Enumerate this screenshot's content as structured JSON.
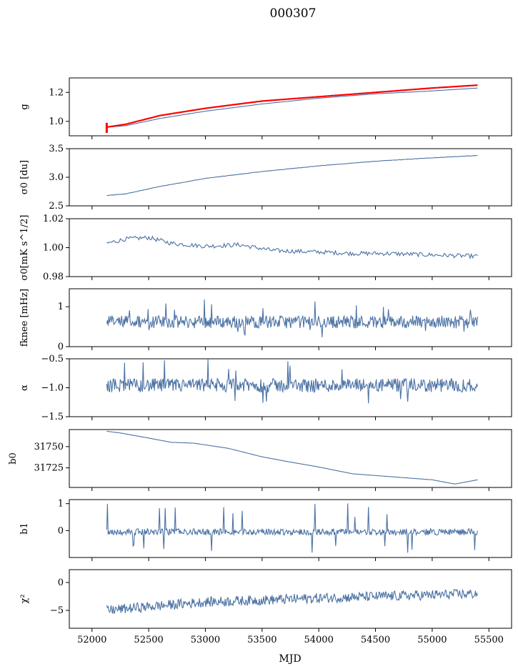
{
  "figure": {
    "title": "000307",
    "xlabel": "MJD"
  },
  "colors": {
    "series": "#4c72a4",
    "highlight": "#ff0000",
    "axis": "#000000"
  },
  "chart_data": [
    {
      "type": "line",
      "ylabel": "g",
      "xlim": [
        51800,
        55700
      ],
      "ylim": [
        0.9,
        1.3
      ],
      "yticks": [
        1.0,
        1.2
      ],
      "ytick_labels": [
        "1.0",
        "1.2"
      ],
      "x_range": [
        52130,
        55400
      ],
      "series": [
        {
          "color": "#4c72a4",
          "x": [
            52130,
            52300,
            52600,
            53000,
            53500,
            54000,
            54500,
            55000,
            55400
          ],
          "values": [
            0.96,
            0.97,
            1.02,
            1.07,
            1.12,
            1.16,
            1.19,
            1.21,
            1.23
          ]
        },
        {
          "color": "#ff0000",
          "x": [
            52130,
            52300,
            52600,
            53000,
            53500,
            54000,
            54500,
            55000,
            55400
          ],
          "values": [
            0.96,
            0.98,
            1.04,
            1.09,
            1.14,
            1.17,
            1.2,
            1.23,
            1.25
          ]
        }
      ]
    },
    {
      "type": "line",
      "ylabel": "σ0 [du]",
      "xlim": [
        51800,
        55700
      ],
      "ylim": [
        2.5,
        3.5
      ],
      "yticks": [
        2.5,
        3.0,
        3.5
      ],
      "ytick_labels": [
        "2.5",
        "3.0",
        "3.5"
      ],
      "x_range": [
        52130,
        55400
      ],
      "series": [
        {
          "color": "#4c72a4",
          "x": [
            52130,
            52300,
            52600,
            53000,
            53500,
            54000,
            54500,
            55000,
            55400
          ],
          "values": [
            2.68,
            2.71,
            2.84,
            2.98,
            3.1,
            3.2,
            3.28,
            3.34,
            3.38
          ]
        }
      ]
    },
    {
      "type": "line",
      "ylabel": "σ0[mK s^1/2]",
      "xlim": [
        51800,
        55700
      ],
      "ylim": [
        0.98,
        1.02
      ],
      "yticks": [
        0.98,
        1.0,
        1.02
      ],
      "ytick_labels": [
        "0.98",
        "1.00",
        "1.02"
      ],
      "x_range": [
        52130,
        55400
      ],
      "series": [
        {
          "color": "#4c72a4",
          "x": [
            52130,
            52300,
            52500,
            52700,
            53000,
            53300,
            53600,
            54000,
            54300,
            54600,
            55000,
            55400
          ],
          "values": [
            1.003,
            1.006,
            1.007,
            1.003,
            1.001,
            1.002,
            0.998,
            0.997,
            0.996,
            0.996,
            0.995,
            0.994
          ]
        }
      ]
    },
    {
      "type": "line",
      "ylabel": "fknee [mHz]",
      "xlim": [
        51800,
        55700
      ],
      "ylim": [
        0,
        1.45
      ],
      "yticks": [
        0,
        1
      ],
      "ytick_labels": [
        "0",
        "1"
      ],
      "x_range": [
        52130,
        55400
      ],
      "noise": {
        "mean": 0.62,
        "amplitude": 0.16,
        "spike_max": 1.2,
        "spike_min": 0.22
      },
      "series": [
        {
          "color": "#4c72a4"
        }
      ]
    },
    {
      "type": "line",
      "ylabel": "α",
      "xlim": [
        51800,
        55700
      ],
      "ylim": [
        -1.5,
        -0.5
      ],
      "yticks": [
        -1.5,
        -1.0,
        -0.5
      ],
      "ytick_labels": [
        "−1.5",
        "−1.0",
        "−0.5"
      ],
      "x_range": [
        52130,
        55400
      ],
      "noise": {
        "mean": -0.96,
        "amplitude": 0.12,
        "spike_max": -0.5,
        "spike_min": -1.33
      },
      "series": [
        {
          "color": "#4c72a4"
        }
      ]
    },
    {
      "type": "line",
      "ylabel": "b0",
      "xlim": [
        51800,
        55700
      ],
      "ylim": [
        31702,
        31770
      ],
      "yticks": [
        31725,
        31750
      ],
      "ytick_labels": [
        "31725",
        "31750"
      ],
      "x_range": [
        52130,
        55400
      ],
      "series": [
        {
          "color": "#4c72a4",
          "x": [
            52130,
            52250,
            52500,
            52700,
            52900,
            53200,
            53500,
            53700,
            54000,
            54300,
            54600,
            55000,
            55200,
            55400
          ],
          "values": [
            31768,
            31766,
            31760,
            31755,
            31754,
            31748,
            31738,
            31733,
            31726,
            31718,
            31715,
            31711,
            31706,
            31711
          ]
        }
      ]
    },
    {
      "type": "line",
      "ylabel": "b1",
      "xlim": [
        51800,
        55700
      ],
      "ylim": [
        -1.0,
        1.15
      ],
      "yticks": [
        0,
        1
      ],
      "ytick_labels": [
        "0",
        "1"
      ],
      "x_range": [
        52130,
        55400
      ],
      "noise": {
        "mean": -0.05,
        "amplitude": 0.12,
        "spike_max": 1.02,
        "spike_min": -0.88
      },
      "series": [
        {
          "color": "#4c72a4"
        }
      ]
    },
    {
      "type": "line",
      "ylabel": "χ²",
      "xlim": [
        51800,
        55700
      ],
      "ylim": [
        -8.2,
        2.3
      ],
      "yticks": [
        -5,
        0
      ],
      "ytick_labels": [
        "−5",
        "0"
      ],
      "x_range": [
        52130,
        55400
      ],
      "trend": {
        "x": [
          52130,
          52400,
          53000,
          54000,
          55400
        ],
        "values": [
          -5.0,
          -4.5,
          -3.5,
          -2.8,
          -2.0
        ]
      },
      "noise": {
        "amplitude": 0.9
      },
      "series": [
        {
          "color": "#4c72a4"
        }
      ]
    }
  ],
  "xaxis": {
    "ticks": [
      52000,
      52500,
      53000,
      53500,
      54000,
      54500,
      55000,
      55500
    ],
    "tick_labels": [
      "52000",
      "52500",
      "53000",
      "53500",
      "54000",
      "54500",
      "55000",
      "55500"
    ]
  }
}
